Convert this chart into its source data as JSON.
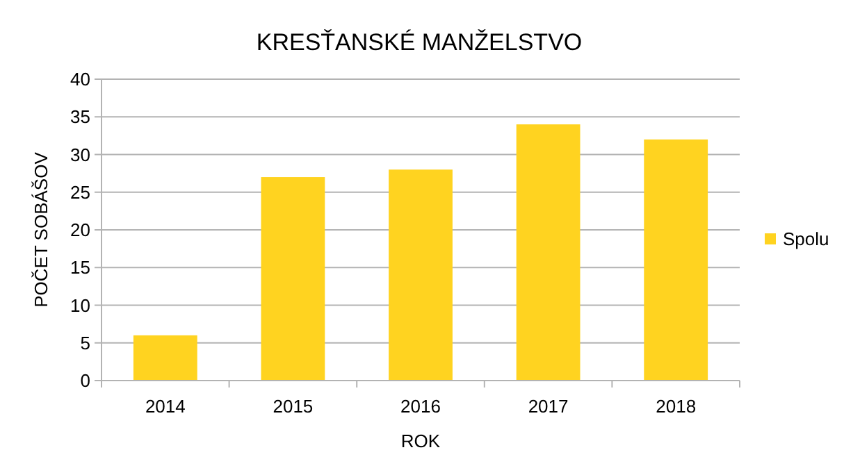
{
  "chart_data": {
    "type": "bar",
    "title": "KRESŤANSKÉ MANŽELSTVO",
    "xlabel": "ROK",
    "ylabel": "POČET SOBÁŠOV",
    "categories": [
      "2014",
      "2015",
      "2016",
      "2017",
      "2018"
    ],
    "series": [
      {
        "name": "Spolu",
        "color": "#ffd320",
        "values": [
          6,
          27,
          28,
          34,
          32
        ]
      }
    ],
    "ylim": [
      0,
      40
    ],
    "yticks": [
      0,
      5,
      10,
      15,
      20,
      25,
      30,
      35,
      40
    ],
    "grid": "y",
    "legend": "right"
  }
}
